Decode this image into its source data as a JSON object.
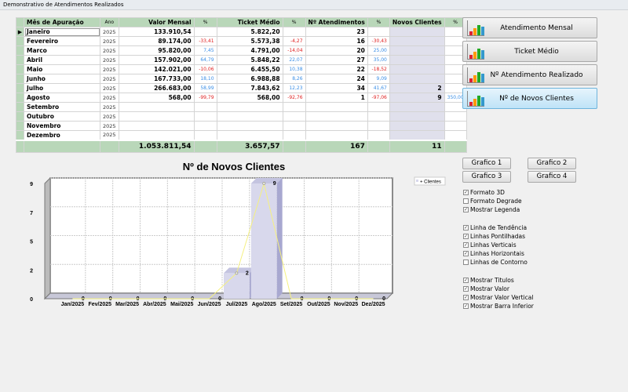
{
  "window": {
    "title": "Demonstrativo de Atendimentos Realizados"
  },
  "table": {
    "headers": [
      "Mês de Apuração",
      "Ano",
      "Valor Mensal",
      "%",
      "Ticket Médio",
      "%",
      "Nº Atendimentos",
      "%",
      "Novos Clientes",
      "%"
    ],
    "rows": [
      {
        "mes": "Janeiro",
        "ano": "2025",
        "valor": "133.910,54",
        "valor_pct": "",
        "ticket": "5.822,20",
        "ticket_pct": "",
        "atend": "23",
        "atend_pct": "",
        "novos": "",
        "novos_pct": ""
      },
      {
        "mes": "Fevereiro",
        "ano": "2025",
        "valor": "89.174,00",
        "valor_pct": "-33,41",
        "ticket": "5.573,38",
        "ticket_pct": "-4,27",
        "atend": "16",
        "atend_pct": "-30,43",
        "novos": "",
        "novos_pct": ""
      },
      {
        "mes": "Marco",
        "ano": "2025",
        "valor": "95.820,00",
        "valor_pct": "7,45",
        "ticket": "4.791,00",
        "ticket_pct": "-14,04",
        "atend": "20",
        "atend_pct": "25,00",
        "novos": "",
        "novos_pct": ""
      },
      {
        "mes": "Abril",
        "ano": "2025",
        "valor": "157.902,00",
        "valor_pct": "64,79",
        "ticket": "5.848,22",
        "ticket_pct": "22,07",
        "atend": "27",
        "atend_pct": "35,00",
        "novos": "",
        "novos_pct": ""
      },
      {
        "mes": "Maio",
        "ano": "2025",
        "valor": "142.021,00",
        "valor_pct": "-10,06",
        "ticket": "6.455,50",
        "ticket_pct": "10,38",
        "atend": "22",
        "atend_pct": "-18,52",
        "novos": "",
        "novos_pct": ""
      },
      {
        "mes": "Junho",
        "ano": "2025",
        "valor": "167.733,00",
        "valor_pct": "18,10",
        "ticket": "6.988,88",
        "ticket_pct": "8,26",
        "atend": "24",
        "atend_pct": "9,09",
        "novos": "",
        "novos_pct": ""
      },
      {
        "mes": "Julho",
        "ano": "2025",
        "valor": "266.683,00",
        "valor_pct": "58,99",
        "ticket": "7.843,62",
        "ticket_pct": "12,23",
        "atend": "34",
        "atend_pct": "41,67",
        "novos": "2",
        "novos_pct": ""
      },
      {
        "mes": "Agosto",
        "ano": "2025",
        "valor": "568,00",
        "valor_pct": "-99,79",
        "ticket": "568,00",
        "ticket_pct": "-92,76",
        "atend": "1",
        "atend_pct": "-97,06",
        "novos": "9",
        "novos_pct": "350,00"
      },
      {
        "mes": "Setembro",
        "ano": "2025",
        "valor": "",
        "valor_pct": "",
        "ticket": "",
        "ticket_pct": "",
        "atend": "",
        "atend_pct": "",
        "novos": "",
        "novos_pct": ""
      },
      {
        "mes": "Outubro",
        "ano": "2025",
        "valor": "",
        "valor_pct": "",
        "ticket": "",
        "ticket_pct": "",
        "atend": "",
        "atend_pct": "",
        "novos": "",
        "novos_pct": ""
      },
      {
        "mes": "Novembro",
        "ano": "2025",
        "valor": "",
        "valor_pct": "",
        "ticket": "",
        "ticket_pct": "",
        "atend": "",
        "atend_pct": "",
        "novos": "",
        "novos_pct": ""
      },
      {
        "mes": "Dezembro",
        "ano": "2025",
        "valor": "",
        "valor_pct": "",
        "ticket": "",
        "ticket_pct": "",
        "atend": "",
        "atend_pct": "",
        "novos": "",
        "novos_pct": ""
      }
    ],
    "totals": {
      "valor": "1.053.811,54",
      "ticket": "3.657,57",
      "atend": "167",
      "novos": "11"
    },
    "negative_color": "#e02020",
    "positive_color": "#3a8ee6"
  },
  "chart_buttons": [
    {
      "label": "Atendimento Mensal",
      "active": false
    },
    {
      "label": "Ticket Médio",
      "active": false
    },
    {
      "label": "Nº Atendimento Realizado",
      "active": false
    },
    {
      "label": "Nº de Novos Clientes",
      "active": true
    }
  ],
  "graph_buttons": [
    "Grafico 1",
    "Grafico 2",
    "Grafico 3",
    "Grafico 4"
  ],
  "options": [
    {
      "label": "Formato 3D",
      "checked": true
    },
    {
      "label": "Formato Degrade",
      "checked": false
    },
    {
      "label": "Mostrar Legenda",
      "checked": true
    },
    {
      "label": "Linha de Tendência",
      "checked": true
    },
    {
      "label": "Linhas Pontilhadas",
      "checked": true
    },
    {
      "label": "Linhas Verticais",
      "checked": true
    },
    {
      "label": "Linhas Horizontais",
      "checked": true
    },
    {
      "label": "Linhas de Contorno",
      "checked": false
    },
    {
      "label": "Mostrar Titulos",
      "checked": true
    },
    {
      "label": "Mostrar Valor",
      "checked": true
    },
    {
      "label": "Mostrar Valor Vertical",
      "checked": true
    },
    {
      "label": "Mostrar Barra Inferior",
      "checked": true
    }
  ],
  "chart_data": {
    "type": "bar",
    "title": "Nº de Novos Clientes",
    "categories": [
      "Jan/2025",
      "Fev/2025",
      "Mar/2025",
      "Abr/2025",
      "Mai/2025",
      "Jun/2025",
      "Jul/2025",
      "Ago/2025",
      "Set/2025",
      "Out/2025",
      "Nov/2025",
      "Dez/2025"
    ],
    "series": [
      {
        "name": "+ Clientes",
        "values": [
          0,
          0,
          0,
          0,
          0,
          0,
          2,
          9,
          0,
          0,
          0,
          0
        ],
        "color": "#d8d8ec"
      }
    ],
    "trend_line_color": "#f5f080",
    "ylim": [
      0,
      9
    ],
    "yticks": [
      0,
      2.25,
      4.5,
      6.75,
      9
    ],
    "ytick_labels": [
      "0",
      "2",
      "5",
      "7",
      "9"
    ],
    "grid": true,
    "style": "3d",
    "legend": "top-right"
  }
}
